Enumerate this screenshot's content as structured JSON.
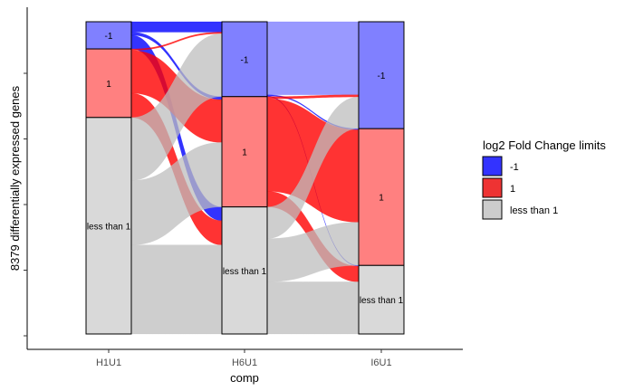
{
  "chart_data": {
    "type": "alluvial",
    "xlabel": "comp",
    "ylabel": "8379 differentially expressed genes",
    "axes": [
      "H1U1",
      "H6U1",
      "I6U1"
    ],
    "strata": [
      {
        "name": "-1",
        "color": "#8080FF",
        "label": "-1"
      },
      {
        "name": "1",
        "color": "#FF8080",
        "label": "1"
      },
      {
        "name": "less than 1",
        "color": "#D9D9D9",
        "label": "less than 1"
      }
    ],
    "stratum_counts": [
      {
        "axis": "H1U1",
        "-1": 730,
        "1": 1840,
        "less than 1": 5809
      },
      {
        "axis": "H6U1",
        "-1": 2010,
        "1": 2960,
        "less than 1": 3409
      },
      {
        "axis": "I6U1",
        "-1": 2870,
        "1": 3670,
        "less than 1": 1839
      }
    ],
    "flows_h1_h6": [
      {
        "from": "-1",
        "to": "-1",
        "n": 280,
        "color": "#0000FF"
      },
      {
        "from": "-1",
        "to": "1",
        "n": 80,
        "color": "#0000FF"
      },
      {
        "from": "-1",
        "to": "less than 1",
        "n": 370,
        "color": "#0000FF"
      },
      {
        "from": "1",
        "to": "-1",
        "n": 40,
        "color": "#FF0000"
      },
      {
        "from": "1",
        "to": "1",
        "n": 1150,
        "color": "#FF0000"
      },
      {
        "from": "1",
        "to": "less than 1",
        "n": 650,
        "color": "#FF0000"
      },
      {
        "from": "less than 1",
        "to": "-1",
        "n": 1690,
        "color": "#BEBEBE"
      },
      {
        "from": "less than 1",
        "to": "1",
        "n": 1730,
        "color": "#BEBEBE"
      },
      {
        "from": "less than 1",
        "to": "less than 1",
        "n": 2389,
        "color": "#BEBEBE"
      }
    ],
    "flows_h6_i6": [
      {
        "from": "-1",
        "to": "-1",
        "n": 1960,
        "color": "#8080FF"
      },
      {
        "from": "-1",
        "to": "1",
        "n": 30,
        "color": "#0000FF"
      },
      {
        "from": "-1",
        "to": "less than 1",
        "n": 20,
        "color": "#0000FF"
      },
      {
        "from": "1",
        "to": "-1",
        "n": 60,
        "color": "#FF0000"
      },
      {
        "from": "1",
        "to": "1",
        "n": 2480,
        "color": "#FF0000"
      },
      {
        "from": "1",
        "to": "less than 1",
        "n": 420,
        "color": "#FF0000"
      },
      {
        "from": "less than 1",
        "to": "-1",
        "n": 850,
        "color": "#BEBEBE"
      },
      {
        "from": "less than 1",
        "to": "1",
        "n": 1160,
        "color": "#BEBEBE"
      },
      {
        "from": "less than 1",
        "to": "less than 1",
        "n": 1399,
        "color": "#BEBEBE"
      }
    ],
    "legend": {
      "title": "log2 Fold Change limits",
      "position": "right",
      "items": [
        {
          "label": "-1",
          "color": "#3333FF"
        },
        {
          "label": "1",
          "color": "#EE3333"
        },
        {
          "label": "less than 1",
          "color": "#CCCCCC"
        }
      ]
    },
    "grid": false
  }
}
